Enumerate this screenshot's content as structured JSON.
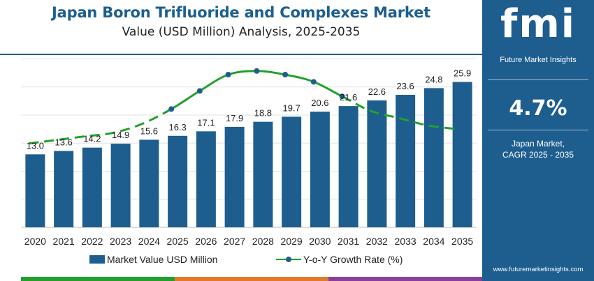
{
  "title": "Japan Boron Trifluoride and Complexes Market",
  "subtitle": "Value (USD Million) Analysis, 2025-2035",
  "colors": {
    "bar": "#1d5e8f",
    "line": "#22a02a",
    "marker": "#1d5e8f",
    "panel": "#1d5e8f",
    "strip": [
      "#22a02a",
      "#e07b2e",
      "#8a3f9e"
    ]
  },
  "chart_data": {
    "type": "bar",
    "categories": [
      "2020",
      "2021",
      "2022",
      "2023",
      "2024",
      "2025",
      "2026",
      "2027",
      "2028",
      "2029",
      "2030",
      "2031",
      "2032",
      "2033",
      "2034",
      "2035"
    ],
    "ylim": [
      0,
      30
    ],
    "grid": true,
    "legend_position": "bottom",
    "series": [
      {
        "name": "Market Value USD Million",
        "type": "bar",
        "values": [
          13.0,
          13.6,
          14.2,
          14.9,
          15.6,
          16.3,
          17.1,
          17.9,
          18.8,
          19.7,
          20.6,
          21.6,
          22.6,
          23.6,
          24.8,
          25.9
        ],
        "labels": [
          "13.0",
          "13.6",
          "14.2",
          "14.9",
          "15.6",
          "16.3",
          "17.1",
          "17.9",
          "18.8",
          "19.7",
          "20.6",
          "21.6",
          "22.6",
          "23.6",
          "24.8",
          "25.9"
        ]
      },
      {
        "name": "Y-o-Y Growth Rate (%)",
        "type": "line",
        "values": [
          4.2,
          4.4,
          4.6,
          4.8,
          5.3,
          6.1,
          7.1,
          8.0,
          8.2,
          8.0,
          7.6,
          6.8,
          6.0,
          5.6,
          5.2,
          5.0
        ],
        "marker_years": [
          "2025",
          "2026",
          "2027",
          "2028",
          "2029",
          "2030",
          "2031"
        ]
      }
    ]
  },
  "legend": {
    "bar_label": "Market Value USD Million",
    "line_label": "Y-o-Y Growth Rate (%)"
  },
  "panel": {
    "logo": "fmi",
    "logo_subtitle": "Future Market Insights",
    "cagr_value": "4.7%",
    "cagr_label": "Japan Market,\nCAGR 2025 - 2035",
    "website": "www.futuremarketinsights.com"
  }
}
